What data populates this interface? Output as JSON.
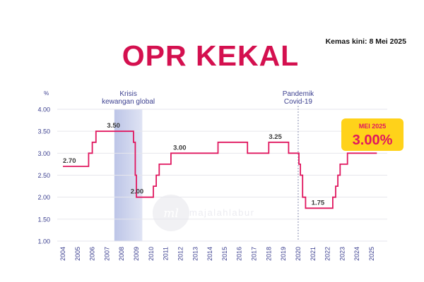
{
  "header": {
    "title": "OPR KEKAL",
    "updated": "Kemas kini: 8 Mei 2025"
  },
  "colors": {
    "line": "#e0175f",
    "title": "#d4104f",
    "axis_text": "#3b3f8f",
    "shade": "#b9c2e6",
    "badge_bg": "#ffd21a",
    "badge_text": "#e0175f"
  },
  "watermark": "majalahlabur",
  "chart_data": {
    "type": "line",
    "y_unit_label": "%",
    "ylim": [
      1.0,
      4.0
    ],
    "y_ticks": [
      "1.00",
      "1.50",
      "2.00",
      "2.50",
      "3.00",
      "3.50",
      "4.00"
    ],
    "x_ticks": [
      "2004",
      "2005",
      "2006",
      "2007",
      "2008",
      "2009",
      "2010",
      "2011",
      "2012",
      "2013",
      "2014",
      "2015",
      "2016",
      "2017",
      "2018",
      "2019",
      "2020",
      "2021",
      "2022",
      "2023",
      "2024",
      "2025"
    ],
    "xlim": [
      2004,
      2025.4
    ],
    "grid": "horizontal",
    "points": [
      [
        2004.0,
        2.7
      ],
      [
        2005.75,
        2.7
      ],
      [
        2005.75,
        3.0
      ],
      [
        2006.0,
        3.0
      ],
      [
        2006.0,
        3.25
      ],
      [
        2006.25,
        3.25
      ],
      [
        2006.25,
        3.5
      ],
      [
        2008.8,
        3.5
      ],
      [
        2008.8,
        3.25
      ],
      [
        2008.92,
        3.25
      ],
      [
        2008.92,
        2.5
      ],
      [
        2009.0,
        2.5
      ],
      [
        2009.0,
        2.0
      ],
      [
        2010.15,
        2.0
      ],
      [
        2010.15,
        2.25
      ],
      [
        2010.35,
        2.25
      ],
      [
        2010.35,
        2.5
      ],
      [
        2010.55,
        2.5
      ],
      [
        2010.55,
        2.75
      ],
      [
        2011.35,
        2.75
      ],
      [
        2011.35,
        3.0
      ],
      [
        2014.55,
        3.0
      ],
      [
        2014.55,
        3.25
      ],
      [
        2016.55,
        3.25
      ],
      [
        2016.55,
        3.0
      ],
      [
        2018.0,
        3.0
      ],
      [
        2018.0,
        3.25
      ],
      [
        2019.35,
        3.25
      ],
      [
        2019.35,
        3.0
      ],
      [
        2020.05,
        3.0
      ],
      [
        2020.05,
        2.75
      ],
      [
        2020.15,
        2.75
      ],
      [
        2020.15,
        2.5
      ],
      [
        2020.3,
        2.5
      ],
      [
        2020.3,
        2.0
      ],
      [
        2020.5,
        2.0
      ],
      [
        2020.5,
        1.75
      ],
      [
        2022.35,
        1.75
      ],
      [
        2022.35,
        2.0
      ],
      [
        2022.55,
        2.0
      ],
      [
        2022.55,
        2.25
      ],
      [
        2022.7,
        2.25
      ],
      [
        2022.7,
        2.5
      ],
      [
        2022.85,
        2.5
      ],
      [
        2022.85,
        2.75
      ],
      [
        2023.35,
        2.75
      ],
      [
        2023.35,
        3.0
      ],
      [
        2025.35,
        3.0
      ]
    ],
    "point_labels": [
      {
        "text": "2.70",
        "x": 2004.0,
        "y": 2.7
      },
      {
        "text": "3.50",
        "x": 2007.0,
        "y": 3.5
      },
      {
        "text": "2.00",
        "x": 2008.6,
        "y": 2.0
      },
      {
        "text": "3.00",
        "x": 2011.5,
        "y": 3.0
      },
      {
        "text": "3.25",
        "x": 2018.0,
        "y": 3.25
      },
      {
        "text": "1.75",
        "x": 2020.9,
        "y": 1.75
      }
    ],
    "shaded_region": {
      "x_range": [
        2007.5,
        2009.4
      ],
      "label_lines": [
        "Krisis",
        "kewangan global"
      ]
    },
    "event_marker": {
      "x": 2020.0,
      "label_lines": [
        "Pandemik",
        "Covid-19"
      ]
    },
    "badge": {
      "label": "MEI 2025",
      "value": "3.00%"
    }
  }
}
